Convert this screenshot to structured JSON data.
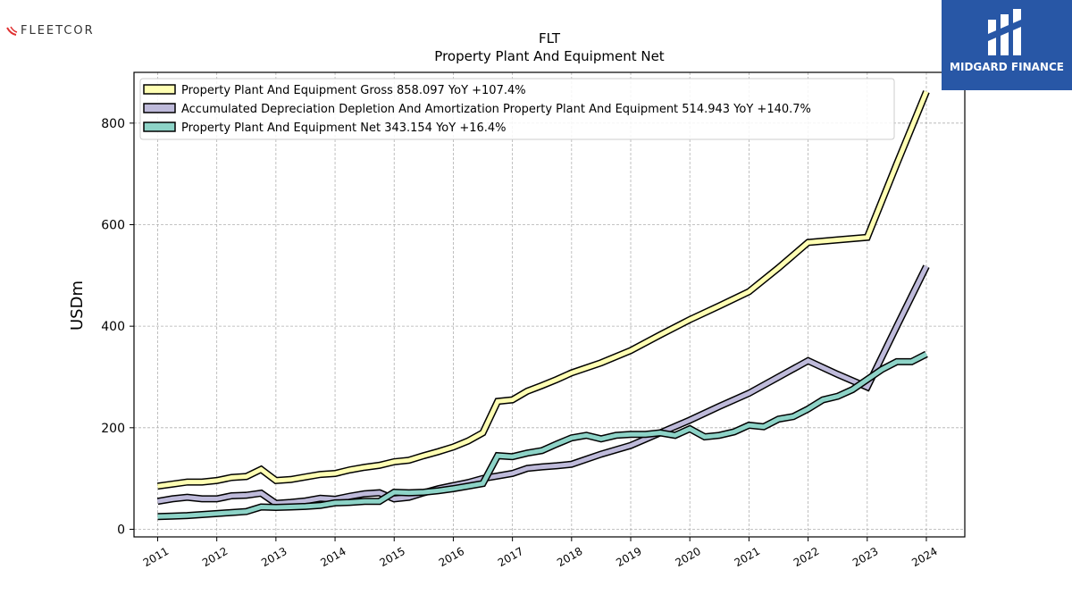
{
  "branding": {
    "left_logo_text": "FLEETCOR",
    "right_logo_text": "MIDGARD FINANCE",
    "left_logo_color": "#e03030",
    "right_bg_color": "#2857a6"
  },
  "chart_data": {
    "type": "line",
    "title": "FLT",
    "subtitle": "Property Plant And Equipment Net",
    "xlabel": "",
    "ylabel": "USDm",
    "xlim": [
      2010.6,
      2024.65
    ],
    "ylim": [
      -15,
      900
    ],
    "x_ticks": [
      2011,
      2012,
      2013,
      2014,
      2015,
      2016,
      2017,
      2018,
      2019,
      2020,
      2021,
      2022,
      2023,
      2024
    ],
    "y_ticks": [
      0,
      200,
      400,
      600,
      800
    ],
    "grid": true,
    "legend_position": "top-left",
    "series": [
      {
        "name": "Property Plant And Equipment Gross",
        "legend_label": "Property Plant And Equipment Gross  858.097 YoY +107.4%",
        "color": "#ffffb3",
        "x": [
          2011,
          2011.25,
          2011.5,
          2011.75,
          2012,
          2012.25,
          2012.5,
          2012.75,
          2013,
          2013.25,
          2013.5,
          2013.75,
          2014,
          2014.25,
          2014.5,
          2014.75,
          2015,
          2015.25,
          2015.5,
          2015.75,
          2016,
          2016.25,
          2016.5,
          2016.75,
          2017,
          2017.25,
          2017.5,
          2017.75,
          2018,
          2018.5,
          2019,
          2019.5,
          2020,
          2020.5,
          2021,
          2021.5,
          2022,
          2022.5,
          2023,
          2023.5,
          2024
        ],
        "values": [
          85,
          89,
          93,
          93,
          96,
          102,
          104,
          118,
          96,
          98,
          103,
          108,
          110,
          117,
          122,
          126,
          133,
          136,
          145,
          153,
          162,
          174,
          190,
          252,
          255,
          272,
          283,
          295,
          308,
          328,
          352,
          383,
          413,
          440,
          468,
          515,
          565,
          570,
          575,
          720,
          862
        ]
      },
      {
        "name": "Accumulated Depreciation Depletion And Amortization Property Plant And Equipment",
        "legend_label": "Accumulated Depreciation Depletion And Amortization Property Plant And Equipment  514.943 YoY +140.7%",
        "color": "#bebada",
        "x": [
          2011,
          2011.25,
          2011.5,
          2011.75,
          2012,
          2012.25,
          2012.5,
          2012.75,
          2013,
          2013.25,
          2013.5,
          2013.75,
          2014,
          2014.25,
          2014.5,
          2014.75,
          2015,
          2015.25,
          2015.5,
          2015.75,
          2016,
          2016.25,
          2016.5,
          2016.75,
          2017,
          2017.25,
          2017.5,
          2017.75,
          2018,
          2018.5,
          2019,
          2019.5,
          2020,
          2020.5,
          2021,
          2021.5,
          2022,
          2022.5,
          2023,
          2023.5,
          2024
        ],
        "values": [
          55,
          60,
          63,
          60,
          60,
          66,
          67,
          71,
          51,
          53,
          56,
          61,
          59,
          65,
          70,
          72,
          60,
          63,
          72,
          80,
          86,
          92,
          100,
          105,
          110,
          120,
          123,
          125,
          128,
          148,
          165,
          190,
          215,
          242,
          268,
          300,
          332,
          305,
          280,
          400,
          518
        ]
      },
      {
        "name": "Property Plant And Equipment Net",
        "legend_label": "Property Plant And Equipment Net  343.154 YoY +16.4%",
        "color": "#8dd3c7",
        "x": [
          2011,
          2011.25,
          2011.5,
          2011.75,
          2012,
          2012.25,
          2012.5,
          2012.75,
          2013,
          2013.25,
          2013.5,
          2013.75,
          2014,
          2014.25,
          2014.5,
          2014.75,
          2015,
          2015.25,
          2015.5,
          2015.75,
          2016,
          2016.25,
          2016.5,
          2016.75,
          2017,
          2017.25,
          2017.5,
          2017.75,
          2018,
          2018.25,
          2018.5,
          2018.75,
          2019,
          2019.25,
          2019.5,
          2019.75,
          2020,
          2020.25,
          2020.5,
          2020.75,
          2021,
          2021.25,
          2021.5,
          2021.75,
          2022,
          2022.25,
          2022.5,
          2022.75,
          2023,
          2023.25,
          2023.5,
          2023.75,
          2024
        ],
        "values": [
          25,
          26,
          27,
          29,
          31,
          33,
          35,
          44,
          43,
          44,
          45,
          47,
          52,
          53,
          55,
          55,
          73,
          72,
          73,
          76,
          80,
          85,
          90,
          145,
          143,
          150,
          155,
          168,
          180,
          185,
          178,
          185,
          187,
          187,
          190,
          185,
          198,
          182,
          185,
          192,
          205,
          202,
          217,
          222,
          237,
          255,
          262,
          275,
          295,
          315,
          330,
          330,
          345
        ]
      }
    ]
  }
}
